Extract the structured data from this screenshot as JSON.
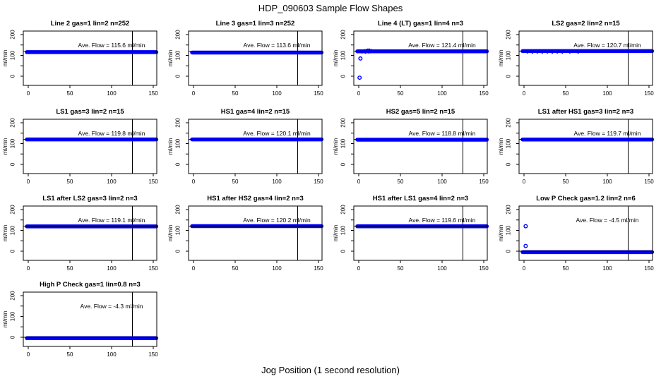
{
  "page": {
    "title": "HDP_090603  Sample Flow Shapes",
    "xlabel": "Jog Position (1 second resolution)"
  },
  "chart_data": {
    "type": "scatter",
    "title": "HDP_090603  Sample Flow Shapes",
    "xlabel": "Jog Position (1 second resolution)",
    "ylabel": "ml/min",
    "point_color": "#0000ff",
    "axis_color": "#000000",
    "grid": "off",
    "layout": {
      "rows": 4,
      "cols": 4,
      "col_lefts": [
        0,
        234,
        468,
        702
      ],
      "row_tops": [
        20,
        145,
        268,
        390
      ],
      "xlim": [
        -6,
        154
      ],
      "ylim": [
        -45,
        218
      ],
      "xticks": [
        0,
        50,
        100,
        150
      ],
      "yticks_all": [
        0,
        50,
        100,
        150,
        200
      ],
      "yticks_labeled": [
        0,
        100,
        200
      ],
      "vline_x": 125
    },
    "plots": [
      {
        "title": "Line 2 gas=1 lin=2 n=252",
        "ave_flow": 115.6,
        "ave_flow_label": "Ave. Flow =  115.6  ml/min",
        "hline": 120,
        "band": {
          "x_start": 0,
          "x_end": 152,
          "y": 115.6
        },
        "outliers": [],
        "scatter": []
      },
      {
        "title": "Line 3 gas=1 lin=3 n=252",
        "ave_flow": 113.6,
        "ave_flow_label": "Ave. Flow =  113.6  ml/min",
        "hline": 120,
        "band": {
          "x_start": 0,
          "x_end": 152,
          "y": 113.6
        },
        "outliers": [],
        "scatter": []
      },
      {
        "title": "Line 4 (LT) gas=1 lin=4 n=3",
        "ave_flow": 121.4,
        "ave_flow_label": "Ave. Flow =  121.4  ml/min",
        "hline": 120,
        "band": {
          "x_start": 0,
          "x_end": 152,
          "y": 119.5
        },
        "outliers": [
          [
            1,
            -7
          ],
          [
            2,
            85
          ]
        ],
        "scatter": [
          [
            5,
            124
          ],
          [
            7,
            127
          ],
          [
            9,
            129
          ],
          [
            11,
            130
          ],
          [
            13,
            130
          ],
          [
            15,
            128
          ],
          [
            4,
            112
          ],
          [
            8,
            111
          ],
          [
            12,
            112
          ]
        ]
      },
      {
        "title": "LS2 gas=2 lin=2 n=15",
        "ave_flow": 120.7,
        "ave_flow_label": "Ave. Flow =  120.7  ml/min",
        "hline": 120,
        "band": {
          "x_start": 0,
          "x_end": 152,
          "y": 120.7
        },
        "outliers": [],
        "scatter": [
          [
            4,
            112
          ],
          [
            10,
            111
          ],
          [
            16,
            112
          ],
          [
            22,
            111
          ],
          [
            28,
            112
          ],
          [
            34,
            111
          ],
          [
            40,
            112
          ],
          [
            46,
            111
          ],
          [
            55,
            112
          ],
          [
            65,
            111
          ]
        ]
      },
      {
        "title": "LS1 gas=3 lin=2 n=15",
        "ave_flow": 119.8,
        "ave_flow_label": "Ave. Flow =  119.8  ml/min",
        "hline": 120,
        "band": {
          "x_start": 0,
          "x_end": 152,
          "y": 119.8
        },
        "outliers": [],
        "scatter": []
      },
      {
        "title": "HS1 gas=4 lin=2 n=15",
        "ave_flow": 120.1,
        "ave_flow_label": "Ave. Flow =  120.1  ml/min",
        "hline": 120,
        "band": {
          "x_start": 0,
          "x_end": 152,
          "y": 120.1
        },
        "outliers": [],
        "scatter": []
      },
      {
        "title": "HS2 gas=5 lin=2 n=15",
        "ave_flow": 118.8,
        "ave_flow_label": "Ave. Flow =  118.8  ml/min",
        "hline": 120,
        "band": {
          "x_start": 0,
          "x_end": 152,
          "y": 118.8
        },
        "outliers": [],
        "scatter": []
      },
      {
        "title": "LS1 after HS1 gas=3 lin=2 n=3",
        "ave_flow": 119.7,
        "ave_flow_label": "Ave. Flow =  119.7  ml/min",
        "hline": 120,
        "band": {
          "x_start": 0,
          "x_end": 152,
          "y": 119.7
        },
        "outliers": [],
        "scatter": []
      },
      {
        "title": "LS1 after LS2 gas=3 lin=2 n=3",
        "ave_flow": 119.1,
        "ave_flow_label": "Ave. Flow =  119.1  ml/min",
        "hline": 120,
        "band": {
          "x_start": 0,
          "x_end": 152,
          "y": 119.1
        },
        "outliers": [],
        "scatter": []
      },
      {
        "title": "HS1 after HS2 gas=4 lin=2 n=3",
        "ave_flow": 120.2,
        "ave_flow_label": "Ave. Flow =  120.2  ml/min",
        "hline": 120,
        "band": {
          "x_start": 0,
          "x_end": 152,
          "y": 120.2
        },
        "outliers": [],
        "scatter": []
      },
      {
        "title": "HS1 after LS1 gas=4 lin=2 n=3",
        "ave_flow": 119.6,
        "ave_flow_label": "Ave. Flow =  119.6  ml/min",
        "hline": 120,
        "band": {
          "x_start": 0,
          "x_end": 152,
          "y": 119.6
        },
        "outliers": [],
        "scatter": []
      },
      {
        "title": "Low P Check gas=1.2 lin=2 n=6",
        "ave_flow": -4.5,
        "ave_flow_label": "Ave. Flow =  -4.5  ml/min",
        "hline": 0,
        "band": {
          "x_start": 0,
          "x_end": 152,
          "y": -4.5
        },
        "outliers": [
          [
            2,
            120
          ],
          [
            2,
            25
          ]
        ],
        "scatter": []
      },
      {
        "title": "High P Check gas=1 lin=0.8 n=3",
        "ave_flow": -4.3,
        "ave_flow_label": "Ave. Flow =  -4.3  ml/min",
        "hline": 0,
        "band": {
          "x_start": 0,
          "x_end": 152,
          "y": -4.3
        },
        "outliers": [],
        "scatter": []
      }
    ]
  }
}
